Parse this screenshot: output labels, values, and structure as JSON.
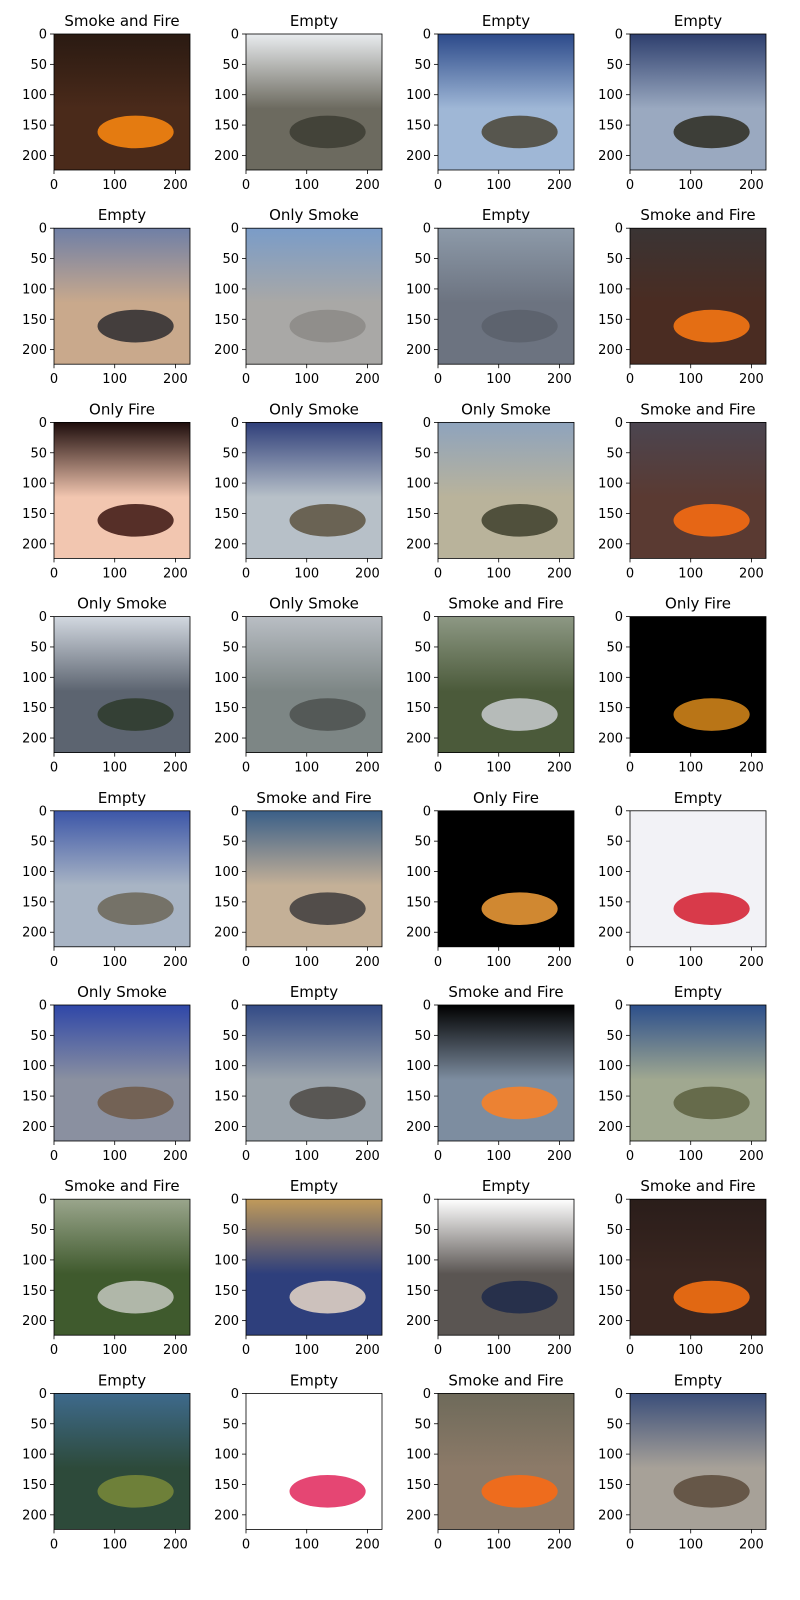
{
  "chart_data": {
    "type": "image-grid",
    "rows": 8,
    "cols": 4,
    "image_size": 224,
    "xticks": [
      0,
      100,
      200
    ],
    "yticks": [
      0,
      50,
      100,
      150,
      200
    ],
    "panels": [
      {
        "title": "Smoke and Fire",
        "scene": "fire-night"
      },
      {
        "title": "Empty",
        "scene": "hill-haze"
      },
      {
        "title": "Empty",
        "scene": "fisheye-sky"
      },
      {
        "title": "Empty",
        "scene": "dark-landscape"
      },
      {
        "title": "Empty",
        "scene": "road-dusk"
      },
      {
        "title": "Only Smoke",
        "scene": "smoke-building"
      },
      {
        "title": "Empty",
        "scene": "wall-gray"
      },
      {
        "title": "Smoke and Fire",
        "scene": "fire-slope"
      },
      {
        "title": "Only Fire",
        "scene": "candle-plate"
      },
      {
        "title": "Only Smoke",
        "scene": "fisheye-hill"
      },
      {
        "title": "Only Smoke",
        "scene": "smoke-field"
      },
      {
        "title": "Smoke and Fire",
        "scene": "fire-slope-2"
      },
      {
        "title": "Only Smoke",
        "scene": "office-smoke"
      },
      {
        "title": "Only Smoke",
        "scene": "city-smoke"
      },
      {
        "title": "Smoke and Fire",
        "scene": "forest-aerial"
      },
      {
        "title": "Only Fire",
        "scene": "fire-black"
      },
      {
        "title": "Empty",
        "scene": "fisheye-plain"
      },
      {
        "title": "Smoke and Fire",
        "scene": "desert-fire"
      },
      {
        "title": "Only Fire",
        "scene": "match-flame"
      },
      {
        "title": "Empty",
        "scene": "red-sweater"
      },
      {
        "title": "Only Smoke",
        "scene": "fisheye-base"
      },
      {
        "title": "Empty",
        "scene": "fisheye-valley"
      },
      {
        "title": "Smoke and Fire",
        "scene": "room-fire"
      },
      {
        "title": "Empty",
        "scene": "fisheye-hills"
      },
      {
        "title": "Smoke and Fire",
        "scene": "forest-aerial-2"
      },
      {
        "title": "Empty",
        "scene": "team-photo"
      },
      {
        "title": "Empty",
        "scene": "tv-news"
      },
      {
        "title": "Smoke and Fire",
        "scene": "fire-night-2"
      },
      {
        "title": "Empty",
        "scene": "campus"
      },
      {
        "title": "Empty",
        "scene": "dragon-fruit"
      },
      {
        "title": "Smoke and Fire",
        "scene": "firefighters"
      },
      {
        "title": "Empty",
        "scene": "fisheye-mountain"
      }
    ]
  },
  "scene_colors": {
    "fire-night": [
      "#2a1a12",
      "#4a2a1a",
      "#ff8a10"
    ],
    "hill-haze": [
      "#e9ecef",
      "#6c6a5f",
      "#3c3c33"
    ],
    "fisheye-sky": [
      "#2c4a8a",
      "#9fb7d6",
      "#4a4536"
    ],
    "dark-landscape": [
      "#2e3f6e",
      "#9aa9c0",
      "#2d2b20"
    ],
    "road-dusk": [
      "#6f7fa6",
      "#c9a98c",
      "#2d2c2f"
    ],
    "smoke-building": [
      "#7a9cc8",
      "#a9a8a6",
      "#8c8a86"
    ],
    "wall-gray": [
      "#8d9aa9",
      "#6c7380",
      "#5a606b"
    ],
    "fire-slope": [
      "#3a3434",
      "#4a2c22",
      "#ff7a12"
    ],
    "candle-plate": [
      "#1e0d0c",
      "#f2c6b0",
      "#3b1410"
    ],
    "fisheye-hill": [
      "#2f3f7a",
      "#b7c0c8",
      "#5d5240"
    ],
    "smoke-field": [
      "#8ea3bd",
      "#b9b39b",
      "#3d3e2b"
    ],
    "fire-slope-2": [
      "#4b4550",
      "#5a3a32",
      "#ff6e10"
    ],
    "office-smoke": [
      "#d2d8e0",
      "#5c6470",
      "#2d3a2a"
    ],
    "city-smoke": [
      "#b9bec4",
      "#7d8685",
      "#4c514f"
    ],
    "forest-aerial": [
      "#8d9884",
      "#4b5a3a",
      "#c9cdd0"
    ],
    "fire-black": [
      "#000000",
      "#000000",
      "#d9891b"
    ],
    "fisheye-plain": [
      "#3c56a8",
      "#a8b4c4",
      "#6c6658"
    ],
    "desert-fire": [
      "#3a5f88",
      "#c4b097",
      "#3e3c3c"
    ],
    "match-flame": [
      "#000000",
      "#000000",
      "#f5a03a"
    ],
    "red-sweater": [
      "#f2f2f6",
      "#f2f2f6",
      "#d41a2c"
    ],
    "fisheye-base": [
      "#2f47a8",
      "#8a90a0",
      "#6e5a48"
    ],
    "fisheye-valley": [
      "#324a86",
      "#9aa3ab",
      "#4e4a44"
    ],
    "room-fire": [
      "#000000",
      "#7d8da0",
      "#ff8020"
    ],
    "fisheye-hills": [
      "#2c4f8c",
      "#a0a890",
      "#5c6040"
    ],
    "forest-aerial-2": [
      "#9aa58c",
      "#3f5a2d",
      "#c4c8c0"
    ],
    "team-photo": [
      "#c09a5a",
      "#2e3f7c",
      "#e8d8c8"
    ],
    "tv-news": [
      "#ffffff",
      "#5a5552",
      "#1e2a4a"
    ],
    "fire-night-2": [
      "#2a1d1a",
      "#3a2620",
      "#ff7412"
    ],
    "campus": [
      "#3e6a8c",
      "#2d4a3a",
      "#7a8a3a"
    ],
    "dragon-fruit": [
      "#ffffff",
      "#ffffff",
      "#e0265a"
    ],
    "firefighters": [
      "#6e6a5a",
      "#8c7a68",
      "#ff6a10"
    ],
    "fisheye-mountain": [
      "#3a4e7a",
      "#a7a198",
      "#5a4a3a"
    ]
  }
}
